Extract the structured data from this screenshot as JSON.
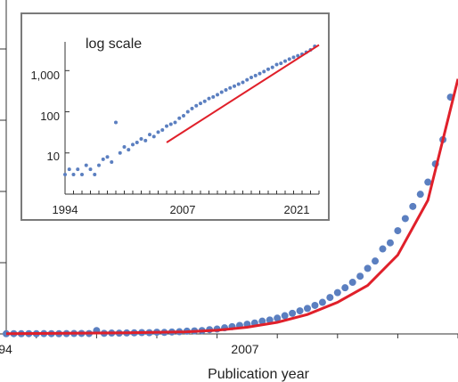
{
  "chart_data": [
    {
      "id": "main",
      "type": "scatter",
      "xlabel": "Publication year",
      "x_tick_labels": [
        "94",
        "2007"
      ],
      "xlim": [
        1994,
        2024
      ],
      "ylim": [
        0,
        5500
      ],
      "ylabel": "",
      "series": [
        {
          "x": [
            1994.0,
            1994.5,
            1995.0,
            1995.5,
            1996.0,
            1996.5,
            1997.0,
            1997.5,
            1998.0,
            1998.5,
            1999.0,
            1999.5,
            2000.0,
            2000.5,
            2001.0,
            2001.5,
            2002.0,
            2002.5,
            2003.0,
            2003.5,
            2004.0,
            2004.5,
            2005.0,
            2005.5,
            2006.0,
            2006.5,
            2007.0,
            2007.5,
            2008.0,
            2008.5,
            2009.0,
            2009.5,
            2010.0,
            2010.5,
            2011.0,
            2011.5,
            2012.0,
            2012.5,
            2013.0,
            2013.5,
            2014.0,
            2014.5,
            2015.0,
            2015.5,
            2016.0,
            2016.5,
            2017.0,
            2017.5,
            2018.0,
            2018.5,
            2019.0,
            2019.5,
            2020.0,
            2020.5,
            2021.0,
            2021.5,
            2022.0,
            2022.5,
            2023.0,
            2023.5
          ],
          "y": [
            3,
            4,
            3,
            4,
            3,
            5,
            4,
            3,
            5,
            7,
            8,
            6,
            55,
            10,
            14,
            12,
            16,
            18,
            22,
            20,
            28,
            25,
            32,
            36,
            45,
            50,
            55,
            70,
            80,
            100,
            120,
            140,
            160,
            180,
            210,
            230,
            260,
            300,
            340,
            380,
            420,
            470,
            520,
            600,
            680,
            760,
            850,
            950,
            1080,
            1200,
            1400,
            1500,
            1700,
            1900,
            2100,
            2300,
            2500,
            2800,
            3200,
            3900
          ]
        }
      ],
      "fit": {
        "x": [
          1994,
          1998,
          2002,
          2006,
          2008,
          2010,
          2012,
          2014,
          2016,
          2018,
          2020,
          2022,
          2024
        ],
        "y": [
          5,
          10,
          18,
          35,
          60,
          110,
          190,
          320,
          520,
          800,
          1300,
          2200,
          4200
        ]
      }
    },
    {
      "id": "inset",
      "type": "scatter",
      "annotation": "log scale",
      "log_y": true,
      "xlim": [
        1994,
        2024
      ],
      "ylim": [
        1,
        5000
      ],
      "x_tick_labels": [
        "1994",
        "2007",
        "2021"
      ],
      "x_ticks": [
        1994,
        2007,
        2021
      ],
      "y_tick_labels": [
        "10",
        "100",
        "1,000"
      ],
      "y_ticks": [
        10,
        100,
        1000
      ],
      "series": [
        {
          "x": [
            1994.0,
            1994.5,
            1995.0,
            1995.5,
            1996.0,
            1996.5,
            1997.0,
            1997.5,
            1998.0,
            1998.5,
            1999.0,
            1999.5,
            2000.0,
            2000.5,
            2001.0,
            2001.5,
            2002.0,
            2002.5,
            2003.0,
            2003.5,
            2004.0,
            2004.5,
            2005.0,
            2005.5,
            2006.0,
            2006.5,
            2007.0,
            2007.5,
            2008.0,
            2008.5,
            2009.0,
            2009.5,
            2010.0,
            2010.5,
            2011.0,
            2011.5,
            2012.0,
            2012.5,
            2013.0,
            2013.5,
            2014.0,
            2014.5,
            2015.0,
            2015.5,
            2016.0,
            2016.5,
            2017.0,
            2017.5,
            2018.0,
            2018.5,
            2019.0,
            2019.5,
            2020.0,
            2020.5,
            2021.0,
            2021.5,
            2022.0,
            2022.5,
            2023.0,
            2023.5
          ],
          "y": [
            3,
            4,
            3,
            4,
            3,
            5,
            4,
            3,
            5,
            7,
            8,
            6,
            55,
            10,
            14,
            12,
            16,
            18,
            22,
            20,
            28,
            25,
            32,
            36,
            45,
            50,
            55,
            70,
            80,
            100,
            120,
            140,
            160,
            180,
            210,
            230,
            260,
            300,
            340,
            380,
            420,
            470,
            520,
            600,
            680,
            760,
            850,
            950,
            1080,
            1200,
            1400,
            1500,
            1700,
            1900,
            2100,
            2300,
            2500,
            2800,
            3200,
            3900
          ]
        }
      ],
      "fit": {
        "x": [
          2006,
          2024
        ],
        "y": [
          18,
          4200
        ]
      }
    }
  ],
  "colors": {
    "points": "#5b7fc0",
    "fit": "#e0202a",
    "axis": "#333333",
    "frame": "#7a7a7a"
  }
}
